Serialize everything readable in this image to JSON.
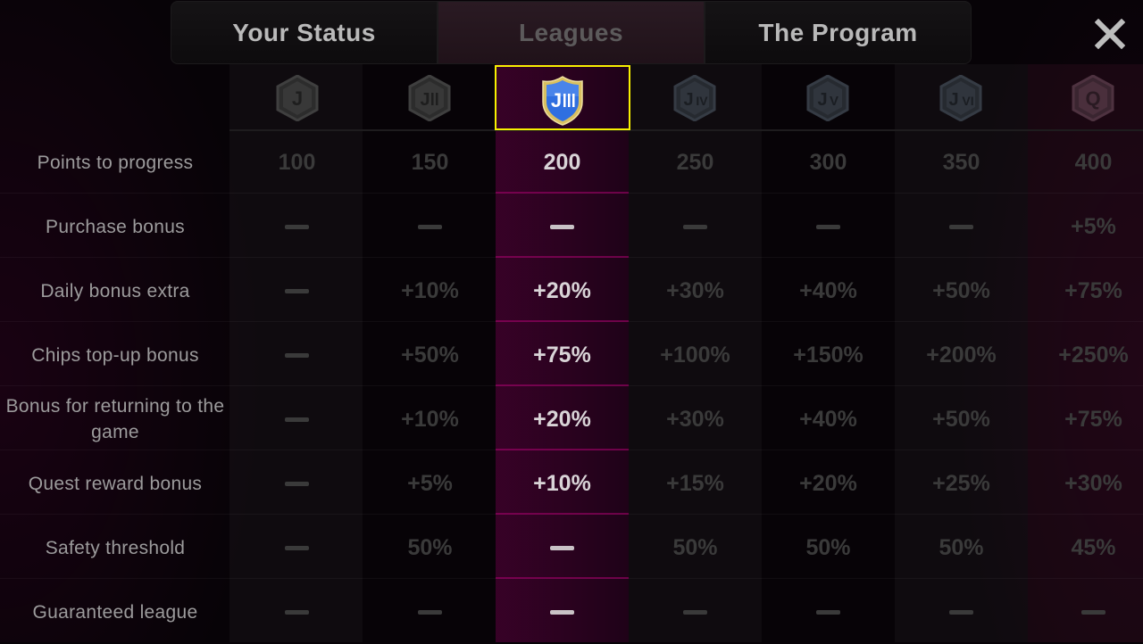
{
  "tabs": [
    {
      "id": "your-status",
      "label": "Your Status"
    },
    {
      "id": "leagues",
      "label": "Leagues",
      "active": true
    },
    {
      "id": "the-program",
      "label": "The Program"
    }
  ],
  "leagues": [
    {
      "id": "j1",
      "badge": "J",
      "icon": "league-j-shield-icon"
    },
    {
      "id": "j2",
      "badge": "J",
      "roman": "II",
      "icon": "league-j-ii-shield-icon"
    },
    {
      "id": "j3",
      "badge": "J",
      "roman": "III",
      "icon": "league-j-iii-shield-icon",
      "selected": true
    },
    {
      "id": "j4",
      "badge": "J",
      "roman": "IV",
      "icon": "league-j-iv-shield-icon"
    },
    {
      "id": "j5",
      "badge": "J",
      "roman": "V",
      "icon": "league-j-v-shield-icon"
    },
    {
      "id": "j6",
      "badge": "J",
      "roman": "VI",
      "icon": "league-j-vi-shield-icon"
    },
    {
      "id": "q1",
      "badge": "Q",
      "icon": "league-q-shield-icon"
    }
  ],
  "rows": [
    {
      "id": "points-to-progress",
      "label": "Points to progress",
      "values": [
        "100",
        "150",
        "200",
        "250",
        "300",
        "350",
        "400"
      ]
    },
    {
      "id": "purchase-bonus",
      "label": "Purchase bonus",
      "values": [
        "—",
        "—",
        "—",
        "—",
        "—",
        "—",
        "+5%"
      ]
    },
    {
      "id": "daily-bonus-extra",
      "label": "Daily bonus extra",
      "values": [
        "—",
        "+10%",
        "+20%",
        "+30%",
        "+40%",
        "+50%",
        "+75%"
      ]
    },
    {
      "id": "chips-top-up-bonus",
      "label": "Chips top-up bonus",
      "values": [
        "—",
        "+50%",
        "+75%",
        "+100%",
        "+150%",
        "+200%",
        "+250%"
      ]
    },
    {
      "id": "bonus-for-returning",
      "label": "Bonus for returning to the game",
      "values": [
        "—",
        "+10%",
        "+20%",
        "+30%",
        "+40%",
        "+50%",
        "+75%"
      ]
    },
    {
      "id": "quest-reward-bonus",
      "label": "Quest reward bonus",
      "values": [
        "—",
        "+5%",
        "+10%",
        "+15%",
        "+20%",
        "+25%",
        "+30%"
      ]
    },
    {
      "id": "safety-threshold",
      "label": "Safety threshold",
      "values": [
        "—",
        "50%",
        "—",
        "50%",
        "50%",
        "50%",
        "45%"
      ]
    },
    {
      "id": "guaranteed-league",
      "label": "Guaranteed league",
      "values": [
        "—",
        "—",
        "—",
        "—",
        "—",
        "—",
        "—"
      ]
    }
  ],
  "colors": {
    "accent_highlight": "#f7f000",
    "selected_column": "#5a0040",
    "badge_selected": "#2f6fe0"
  }
}
